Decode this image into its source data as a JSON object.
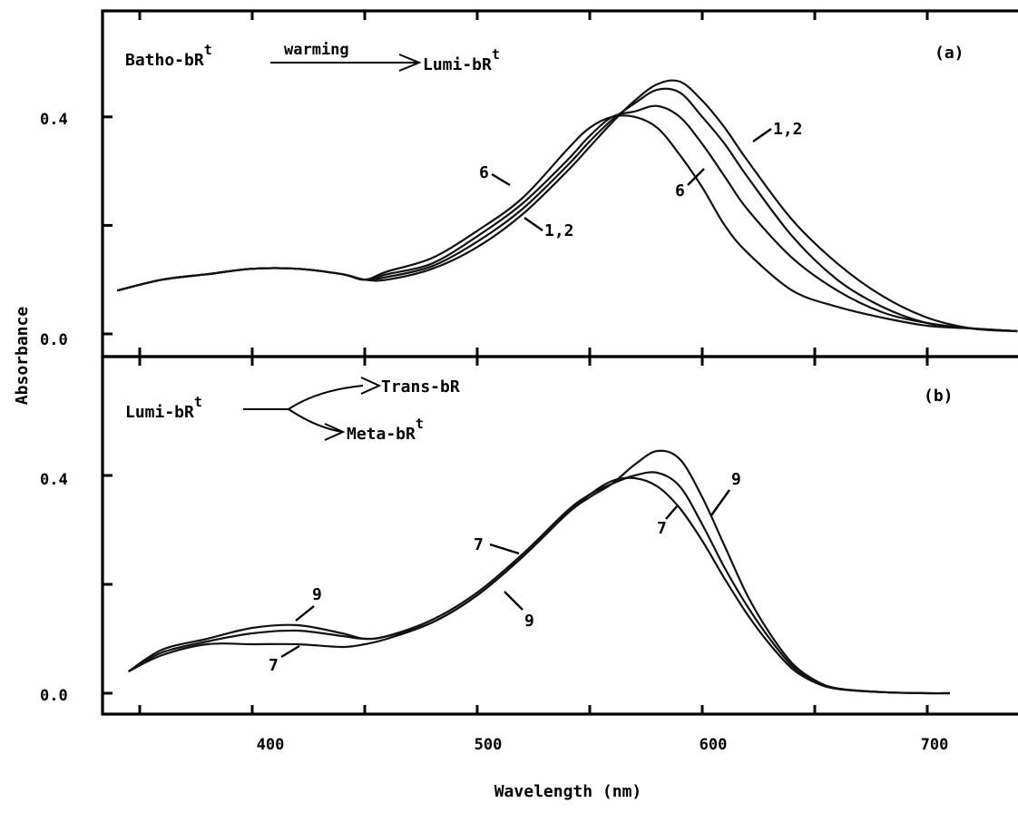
{
  "chart_data": [
    {
      "type": "line",
      "panel": "a",
      "panel_label": "(a)",
      "xlabel": "Wavelength   (nm)",
      "ylabel": "Absorbance",
      "xlim": [
        340,
        740
      ],
      "ylim": [
        -0.02,
        0.6
      ],
      "x_ticks": [
        400,
        500,
        600,
        700
      ],
      "y_ticks": [
        0.0,
        0.4
      ],
      "y_tick_labels": [
        "0.0",
        "0.4"
      ],
      "scheme": {
        "from": "Batho-bR",
        "from_sup": "t",
        "arrow_label": "warming",
        "to": "Lumi-bR",
        "to_sup": "t"
      },
      "curve_labels": [
        {
          "text": "1,2"
        },
        {
          "text": "6"
        },
        {
          "text": "6"
        },
        {
          "text": "1,2"
        }
      ],
      "series": [
        {
          "x": [
            340,
            360,
            380,
            400,
            420,
            440,
            450,
            460,
            480,
            500,
            520,
            540,
            550,
            560,
            570,
            580,
            590,
            600,
            610,
            620,
            640,
            660,
            680,
            700,
            720,
            740
          ],
          "values": [
            0.08,
            0.1,
            0.11,
            0.12,
            0.12,
            0.11,
            0.1,
            0.1,
            0.12,
            0.16,
            0.22,
            0.3,
            0.345,
            0.39,
            0.43,
            0.46,
            0.465,
            0.43,
            0.38,
            0.32,
            0.21,
            0.13,
            0.07,
            0.03,
            0.01,
            0.005
          ]
        },
        {
          "x": [
            340,
            360,
            380,
            400,
            420,
            440,
            450,
            460,
            480,
            500,
            520,
            540,
            550,
            560,
            570,
            580,
            590,
            600,
            610,
            620,
            640,
            660,
            680,
            700,
            720,
            740
          ],
          "values": [
            0.08,
            0.1,
            0.11,
            0.12,
            0.12,
            0.11,
            0.1,
            0.105,
            0.125,
            0.17,
            0.23,
            0.31,
            0.355,
            0.395,
            0.425,
            0.45,
            0.445,
            0.4,
            0.35,
            0.29,
            0.18,
            0.1,
            0.05,
            0.02,
            0.01,
            0.005
          ]
        },
        {
          "x": [
            340,
            360,
            380,
            400,
            420,
            440,
            450,
            460,
            480,
            500,
            520,
            540,
            550,
            560,
            570,
            580,
            590,
            600,
            610,
            620,
            640,
            660,
            680,
            700,
            720,
            740
          ],
          "values": [
            0.08,
            0.1,
            0.11,
            0.12,
            0.12,
            0.11,
            0.1,
            0.11,
            0.13,
            0.18,
            0.24,
            0.32,
            0.365,
            0.4,
            0.41,
            0.42,
            0.4,
            0.35,
            0.29,
            0.23,
            0.14,
            0.08,
            0.04,
            0.02,
            0.01,
            0.005
          ]
        },
        {
          "x": [
            340,
            360,
            380,
            400,
            420,
            440,
            450,
            460,
            480,
            500,
            520,
            540,
            550,
            560,
            570,
            580,
            590,
            600,
            610,
            620,
            640,
            660,
            680,
            700,
            720,
            740
          ],
          "values": [
            0.08,
            0.1,
            0.11,
            0.12,
            0.12,
            0.11,
            0.1,
            0.115,
            0.14,
            0.19,
            0.25,
            0.34,
            0.38,
            0.4,
            0.4,
            0.38,
            0.33,
            0.27,
            0.2,
            0.15,
            0.08,
            0.05,
            0.03,
            0.015,
            0.01,
            0.005
          ]
        }
      ]
    },
    {
      "type": "line",
      "panel": "b",
      "panel_label": "(b)",
      "xlabel": "Wavelength   (nm)",
      "ylabel": "Absorbance",
      "xlim": [
        340,
        740
      ],
      "ylim": [
        -0.02,
        0.6
      ],
      "x_ticks": [
        400,
        500,
        600,
        700
      ],
      "x_tick_labels": [
        "400",
        "500",
        "600",
        "700"
      ],
      "y_ticks": [
        0.0,
        0.4
      ],
      "y_tick_labels": [
        "0.0",
        "0.4"
      ],
      "scheme": {
        "from": "Lumi-bR",
        "from_sup": "t",
        "to1": "Trans-bR",
        "to2": "Meta-bR",
        "to2_sup": "t"
      },
      "curve_labels": [
        {
          "text": "9"
        },
        {
          "text": "7"
        },
        {
          "text": "7"
        },
        {
          "text": "9"
        },
        {
          "text": "7"
        },
        {
          "text": "9"
        }
      ],
      "series": [
        {
          "x": [
            345,
            360,
            380,
            400,
            420,
            440,
            450,
            460,
            480,
            500,
            520,
            540,
            550,
            560,
            570,
            580,
            590,
            600,
            610,
            620,
            630,
            640,
            650,
            660,
            680,
            700,
            710
          ],
          "values": [
            0.04,
            0.07,
            0.09,
            0.09,
            0.09,
            0.085,
            0.09,
            0.1,
            0.13,
            0.18,
            0.25,
            0.33,
            0.365,
            0.39,
            0.395,
            0.38,
            0.34,
            0.28,
            0.21,
            0.145,
            0.09,
            0.045,
            0.02,
            0.008,
            0.002,
            0.0,
            0.0
          ]
        },
        {
          "x": [
            345,
            360,
            380,
            400,
            420,
            440,
            450,
            460,
            480,
            500,
            520,
            540,
            550,
            560,
            570,
            580,
            590,
            600,
            610,
            620,
            630,
            640,
            650,
            660,
            680,
            700,
            710
          ],
          "values": [
            0.04,
            0.075,
            0.095,
            0.11,
            0.115,
            0.105,
            0.1,
            0.105,
            0.135,
            0.185,
            0.255,
            0.335,
            0.365,
            0.385,
            0.4,
            0.405,
            0.38,
            0.31,
            0.23,
            0.16,
            0.1,
            0.05,
            0.022,
            0.008,
            0.002,
            0.0,
            0.0
          ]
        },
        {
          "x": [
            345,
            360,
            380,
            400,
            420,
            440,
            450,
            460,
            480,
            500,
            520,
            540,
            550,
            560,
            570,
            580,
            590,
            600,
            610,
            620,
            630,
            640,
            650,
            660,
            680,
            700,
            710
          ],
          "values": [
            0.04,
            0.08,
            0.1,
            0.12,
            0.125,
            0.11,
            0.1,
            0.105,
            0.13,
            0.18,
            0.25,
            0.33,
            0.36,
            0.385,
            0.42,
            0.445,
            0.43,
            0.36,
            0.27,
            0.18,
            0.11,
            0.055,
            0.024,
            0.009,
            0.002,
            0.0,
            0.0
          ]
        }
      ]
    }
  ]
}
